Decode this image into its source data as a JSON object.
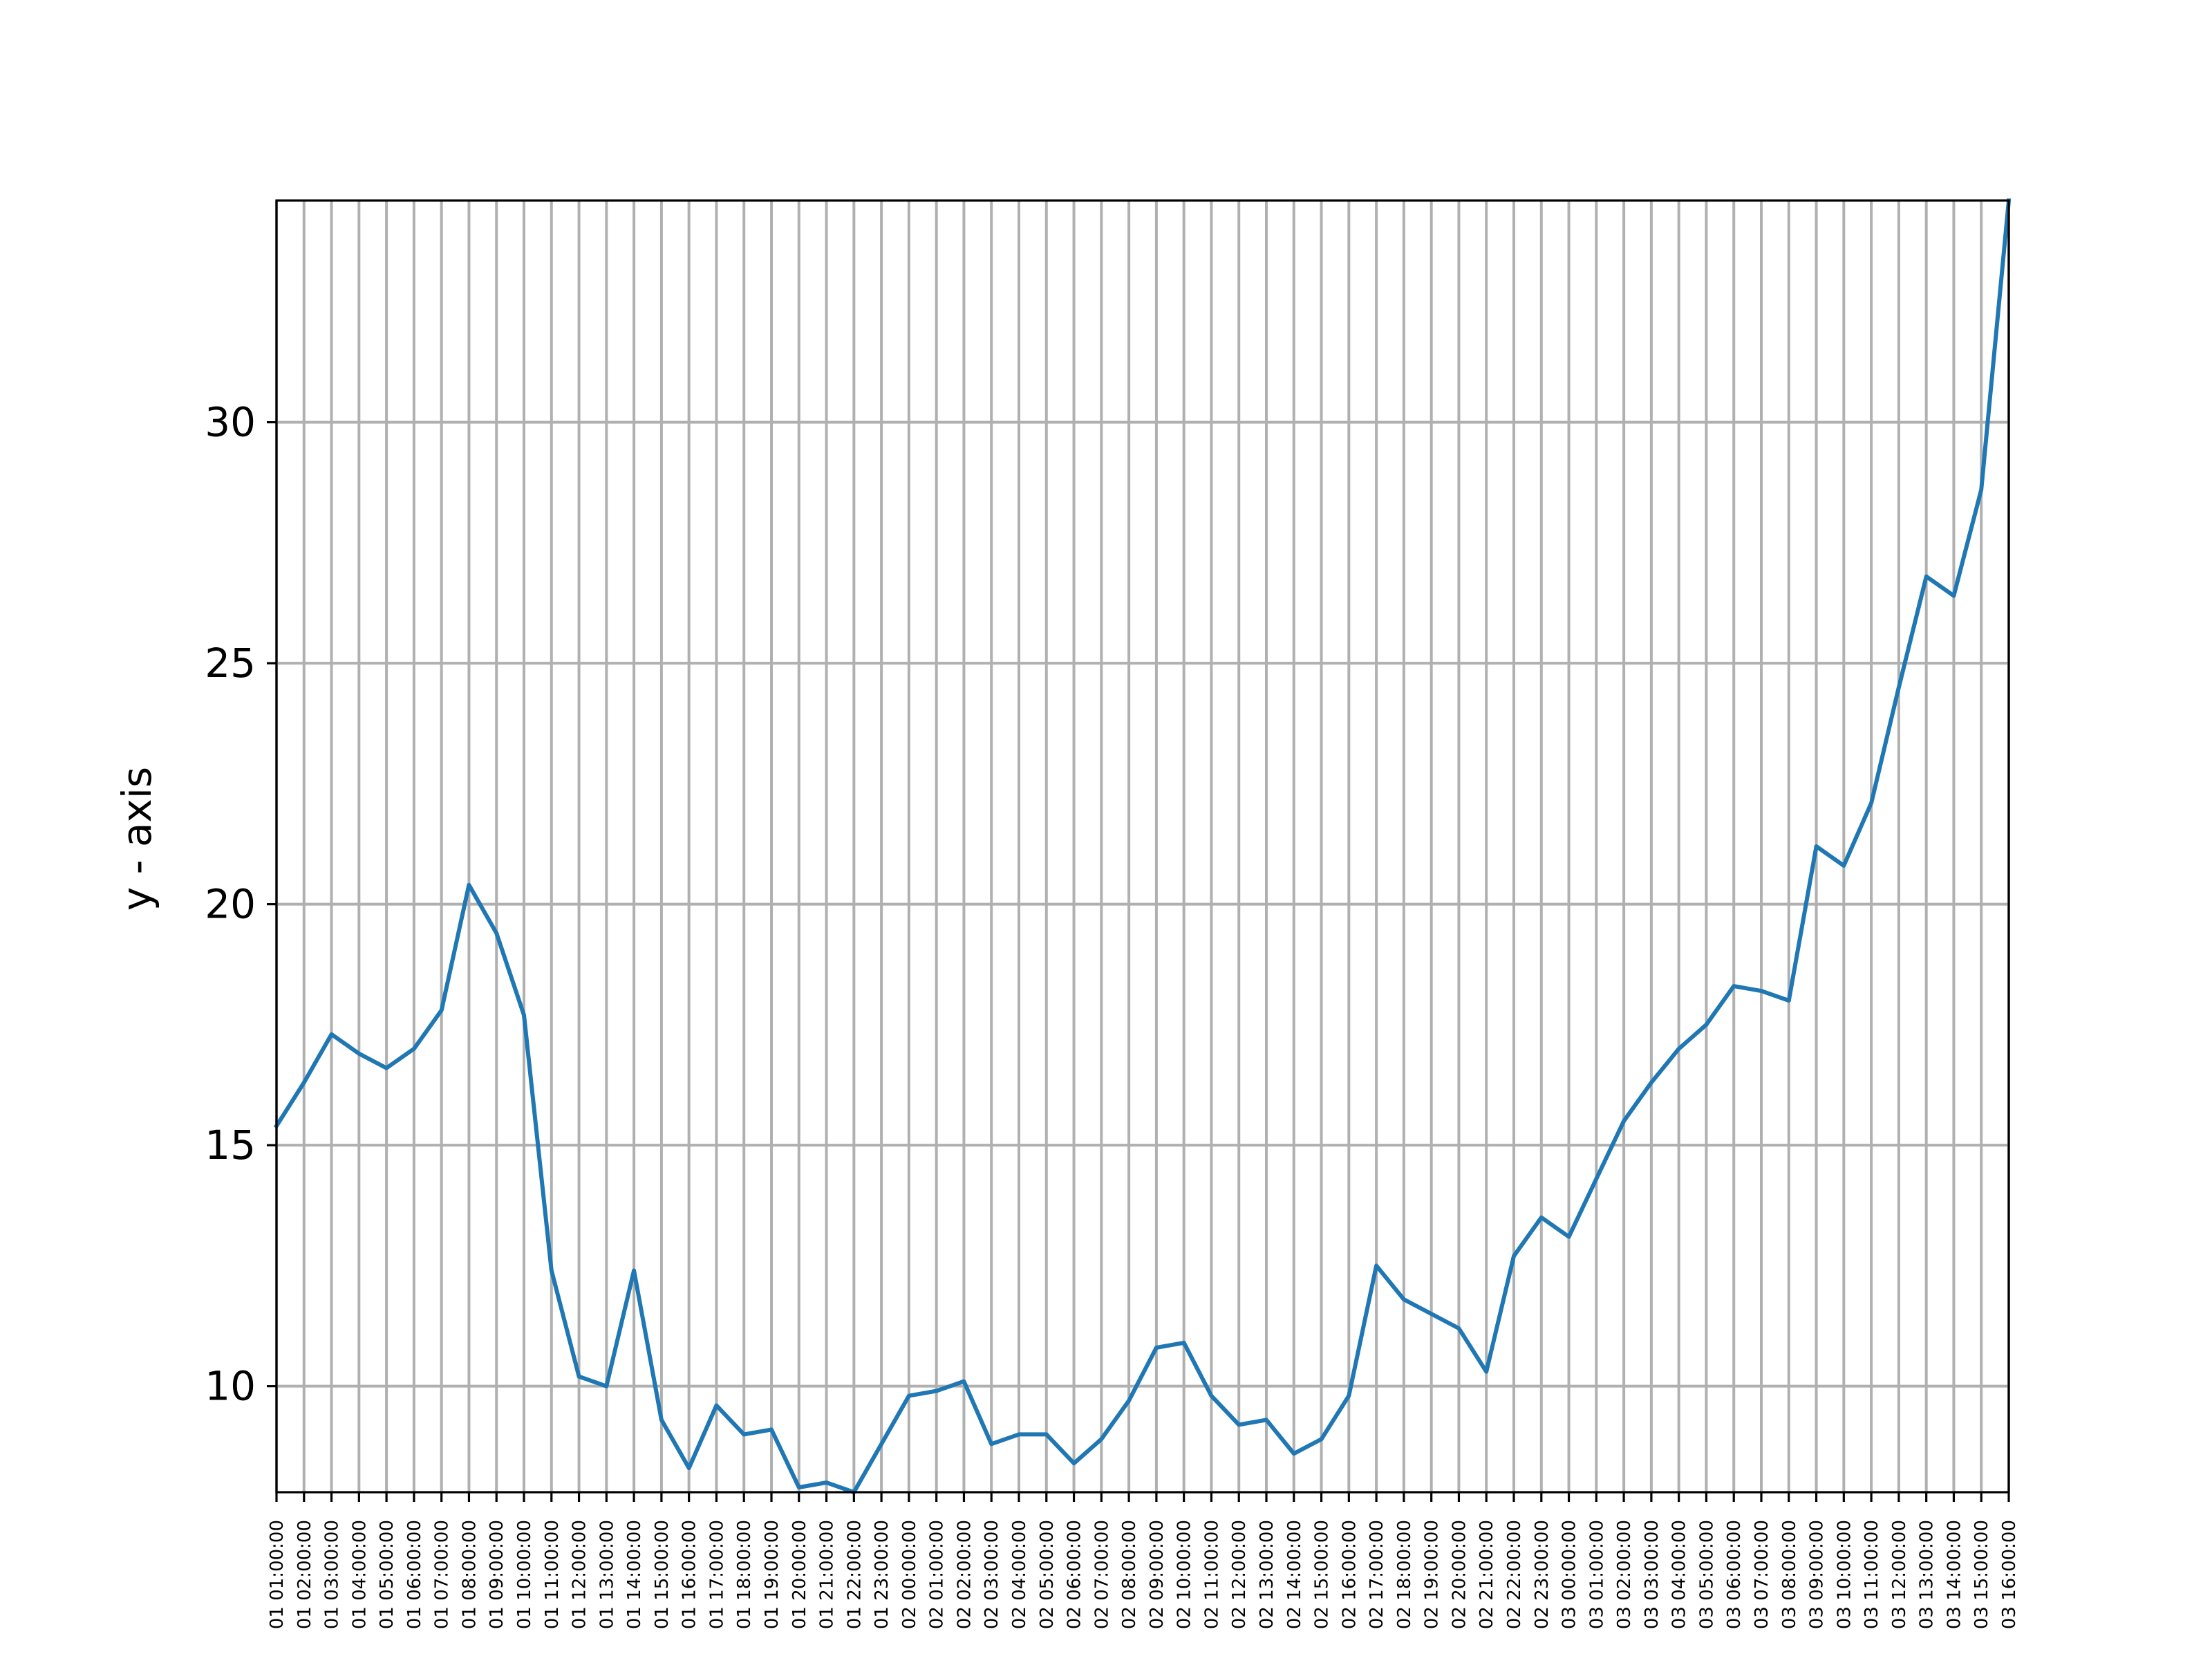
{
  "chart_data": {
    "type": "line",
    "title": "",
    "xlabel": "",
    "ylabel": "y - axis",
    "ylim": [
      7.8,
      34.6
    ],
    "yticks": [
      10,
      15,
      20,
      25,
      30
    ],
    "grid": true,
    "color": "#1f77b4",
    "x_labels_visible": [
      "01 01:00:00",
      "01 02:00:00",
      "01 03:00:00",
      "01 04:00:00",
      "01 05:00:00",
      "01 06:00:00",
      "01 07:00:00",
      "01 08:00:00",
      "01 09:00:00",
      "01 10:00:00",
      "01 11:00:00",
      "01 12:00:00",
      "01 13:00:00",
      "01 14:00:00",
      "01 15:00:00",
      "01 16:00:00",
      "01 17:00:00",
      "01 18:00:00",
      "01 19:00:00",
      "01 20:00:00",
      "01 21:00:00",
      "01 22:00:00",
      "01 23:00:00",
      "02 00:00:00",
      "02 01:00:00",
      "02 02:00:00",
      "02 03:00:00",
      "02 04:00:00",
      "02 05:00:00",
      "02 06:00:00",
      "02 07:00:00",
      "02 08:00:00",
      "02 09:00:00",
      "02 10:00:00",
      "02 11:00:00",
      "02 12:00:00",
      "02 13:00:00",
      "02 14:00:00",
      "02 15:00:00",
      "02 16:00:00",
      "02 17:00:00",
      "02 18:00:00",
      "02 19:00:00",
      "02 20:00:00",
      "02 21:00:00",
      "02 22:00:00",
      "02 23:00:00",
      "03 00:00:00",
      "03 01:00:00",
      "03 02:00:00",
      "03 03:00:00",
      "03 04:00:00",
      "03 05:00:00",
      "03 06:00:00",
      "03 07:00:00",
      "03 08:00:00",
      "03 09:00:00",
      "03 10:00:00",
      "03 11:00:00",
      "03 12:00:00",
      "03 13:00:00",
      "03 14:00:00",
      "03 15:00:00",
      "03 16:00:00"
    ],
    "series": [
      {
        "values": [
          15.4,
          16.3,
          17.3,
          16.9,
          16.6,
          17.0,
          17.8,
          20.4,
          19.4,
          17.7,
          12.4,
          10.2,
          10.0,
          12.4,
          9.3,
          8.3,
          9.6,
          9.0,
          9.1,
          7.9,
          8.0,
          7.8,
          8.8,
          9.8,
          9.9,
          10.1,
          8.8,
          9.0,
          9.0,
          8.4,
          8.9,
          9.7,
          10.8,
          10.9,
          9.8,
          9.2,
          9.3,
          8.6,
          8.9,
          9.8,
          12.5,
          11.8,
          11.5,
          11.2,
          10.3,
          12.7,
          13.5,
          13.1,
          14.3,
          15.5,
          16.3,
          17.0,
          17.5,
          18.3,
          18.2,
          18.0,
          21.2,
          20.8,
          22.1,
          24.5,
          26.8,
          26.4,
          28.6,
          34.6
        ]
      }
    ]
  }
}
